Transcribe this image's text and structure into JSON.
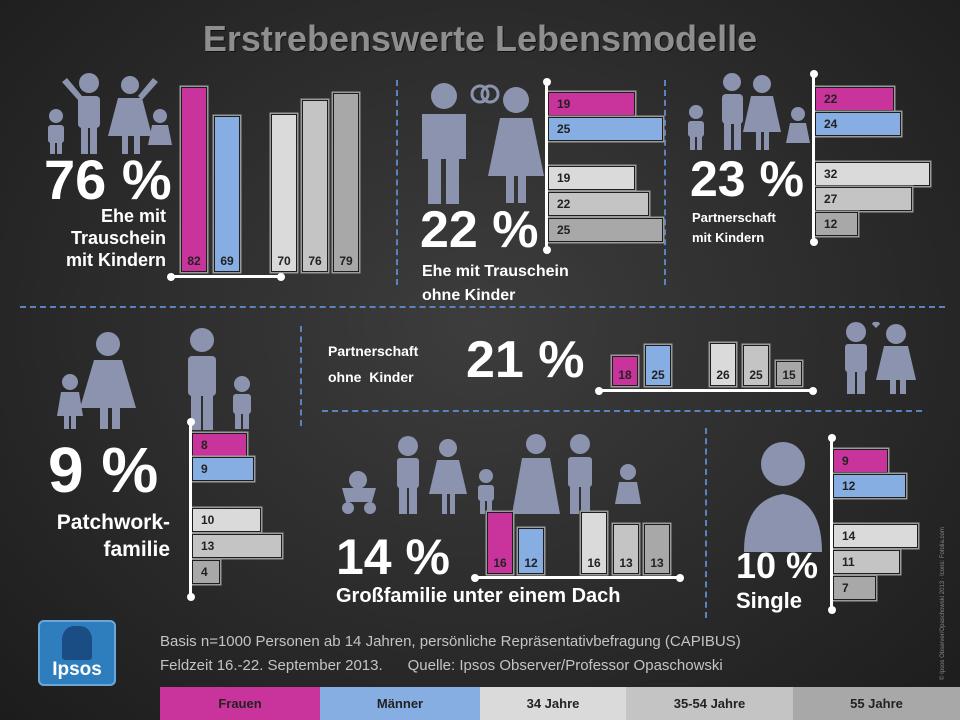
{
  "title": "Erstrebenswerte Lebensmodelle",
  "colors": {
    "frauen": "#c8349b",
    "maenner": "#86aee2",
    "j34": "#dadada",
    "j3554": "#c4c4c4",
    "j55": "#a8a8a8"
  },
  "chart_data": [
    {
      "type": "bar",
      "id": "ehe_kinder",
      "percent": "76 %",
      "label": [
        "Ehe mit",
        "Trauschein",
        "mit Kindern"
      ],
      "categories": [
        "Frauen",
        "Männer",
        "34 Jahre",
        "35-54 Jahre",
        "55 Jahre"
      ],
      "values": [
        82,
        69,
        70,
        76,
        79
      ],
      "orientation": "vertical"
    },
    {
      "type": "bar",
      "id": "ehe_ohne",
      "percent": "22 %",
      "label": [
        "Ehe mit Trauschein",
        "ohne Kinder"
      ],
      "categories": [
        "Frauen",
        "Männer",
        "34 Jahre",
        "35-54 Jahre",
        "55 Jahre"
      ],
      "values": [
        19,
        25,
        19,
        22,
        25
      ],
      "orientation": "horizontal"
    },
    {
      "type": "bar",
      "id": "partner_kinder",
      "percent": "23 %",
      "label": [
        "Partnerschaft",
        "mit Kindern"
      ],
      "categories": [
        "Frauen",
        "Männer",
        "34 Jahre",
        "35-54 Jahre",
        "55 Jahre"
      ],
      "values": [
        22,
        24,
        32,
        27,
        12
      ],
      "orientation": "horizontal"
    },
    {
      "type": "bar",
      "id": "partner_ohne",
      "percent": "21 %",
      "label": [
        "Partnerschaft",
        "ohne  Kinder"
      ],
      "categories": [
        "Frauen",
        "Männer",
        "34 Jahre",
        "35-54 Jahre",
        "55 Jahre"
      ],
      "values": [
        18,
        25,
        26,
        25,
        15
      ],
      "orientation": "vertical"
    },
    {
      "type": "bar",
      "id": "patchwork",
      "percent": "9 %",
      "label": [
        "Patchwork-",
        "familie"
      ],
      "categories": [
        "Frauen",
        "Männer",
        "34 Jahre",
        "35-54 Jahre",
        "55 Jahre"
      ],
      "values": [
        8,
        9,
        10,
        13,
        4
      ],
      "orientation": "horizontal"
    },
    {
      "type": "bar",
      "id": "grossfamilie",
      "percent": "14 %",
      "label": [
        "Großfamilie unter einem Dach"
      ],
      "categories": [
        "Frauen",
        "Männer",
        "34 Jahre",
        "35-54 Jahre",
        "55 Jahre"
      ],
      "values": [
        16,
        12,
        16,
        13,
        13
      ],
      "orientation": "vertical"
    },
    {
      "type": "bar",
      "id": "single",
      "percent": "10 %",
      "label": [
        "Single"
      ],
      "categories": [
        "Frauen",
        "Männer",
        "34 Jahre",
        "35-54 Jahre",
        "55 Jahre"
      ],
      "values": [
        9,
        12,
        14,
        11,
        7
      ],
      "orientation": "horizontal"
    }
  ],
  "footer": {
    "line1": "Basis n=1000 Personen ab 14 Jahren, persönliche Repräsentativbefragung (CAPIBUS)",
    "line2": "Feldzeit 16.-22. September 2013.      Quelle: Ipsos Observer/Professor Opaschowski",
    "logo": "Ipsos",
    "copyright": "© Ipsos Observer/Opaschowski 2013 ∙ Icons: Fotolia.com"
  },
  "legend": [
    "Frauen",
    "Männer",
    "34 Jahre",
    "35-54 Jahre",
    "55 Jahre"
  ]
}
